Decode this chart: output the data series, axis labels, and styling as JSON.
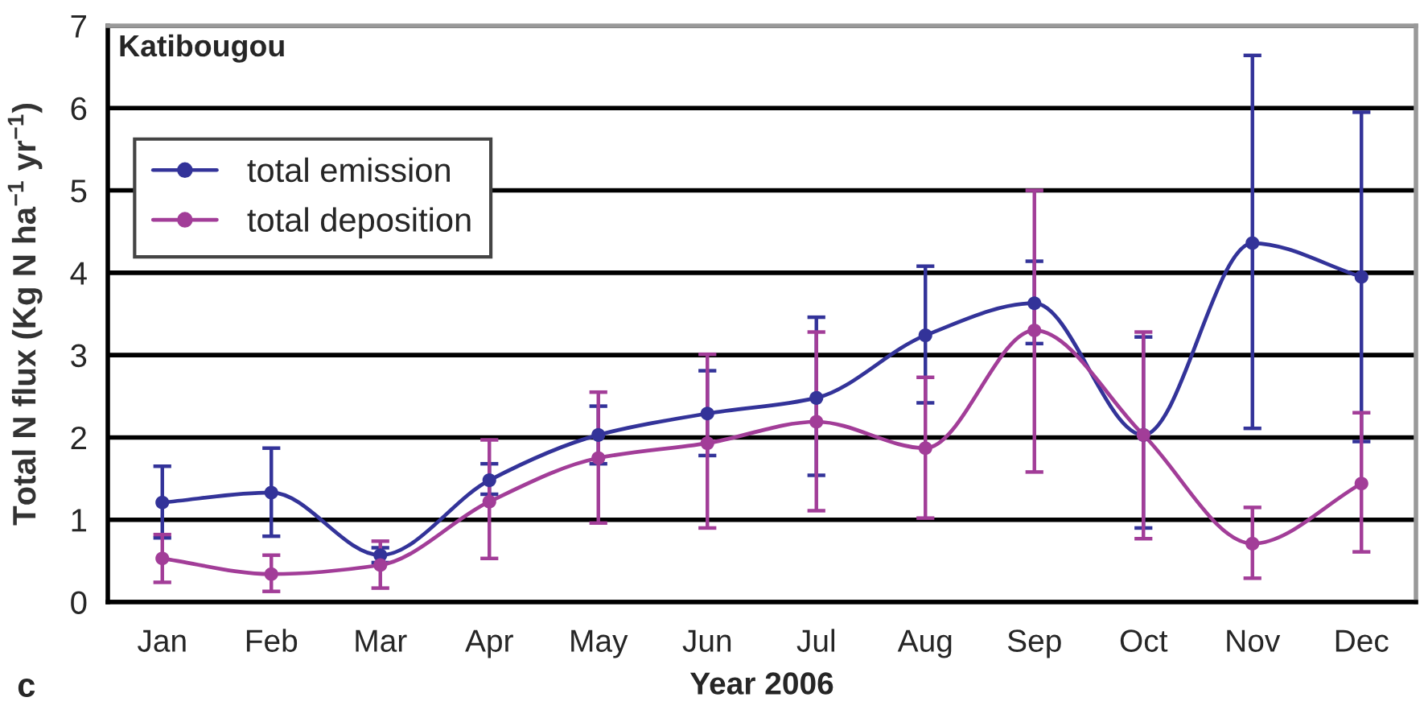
{
  "chart_data": {
    "type": "line",
    "title": "Katibougou",
    "xlabel": "Year 2006",
    "ylabel": "Total N flux (Kg N ha$^{−1}$ yr$^{−1}$)",
    "categories": [
      "Jan",
      "Feb",
      "Mar",
      "Apr",
      "May",
      "Jun",
      "Jul",
      "Aug",
      "Sep",
      "Oct",
      "Nov",
      "Dec"
    ],
    "series": [
      {
        "name": "total emission",
        "color": "#333399",
        "values": [
          1.21,
          1.33,
          0.57,
          1.48,
          2.03,
          2.29,
          2.48,
          3.24,
          3.63,
          2.03,
          4.36,
          3.95
        ],
        "errors": [
          [
            0.78,
            1.65
          ],
          [
            0.8,
            1.87
          ],
          [
            0.48,
            0.66
          ],
          [
            1.31,
            1.68
          ],
          [
            1.68,
            2.38
          ],
          [
            1.78,
            2.81
          ],
          [
            1.54,
            3.46
          ],
          [
            2.42,
            4.08
          ],
          [
            3.14,
            4.14
          ],
          [
            0.9,
            3.22
          ],
          [
            2.11,
            6.64
          ],
          [
            1.95,
            5.95
          ]
        ]
      },
      {
        "name": "total deposition",
        "color": "#a23d98",
        "values": [
          0.53,
          0.34,
          0.45,
          1.22,
          1.75,
          1.93,
          2.19,
          1.87,
          3.3,
          2.03,
          0.71,
          1.44
        ],
        "errors": [
          [
            0.24,
            0.82
          ],
          [
            0.13,
            0.57
          ],
          [
            0.17,
            0.74
          ],
          [
            0.53,
            1.97
          ],
          [
            0.96,
            2.55
          ],
          [
            0.9,
            3.01
          ],
          [
            1.11,
            3.28
          ],
          [
            1.02,
            2.73
          ],
          [
            1.58,
            5.0
          ],
          [
            0.77,
            3.28
          ],
          [
            0.29,
            1.15
          ],
          [
            0.61,
            2.3
          ]
        ]
      }
    ],
    "ylim": [
      0,
      7
    ],
    "yticks": [
      0,
      1,
      2,
      3,
      4,
      5,
      6,
      7
    ],
    "grid": "y",
    "legend": "top left",
    "marker": "circle",
    "line_style": "solid",
    "annotations": [
      "c"
    ]
  }
}
